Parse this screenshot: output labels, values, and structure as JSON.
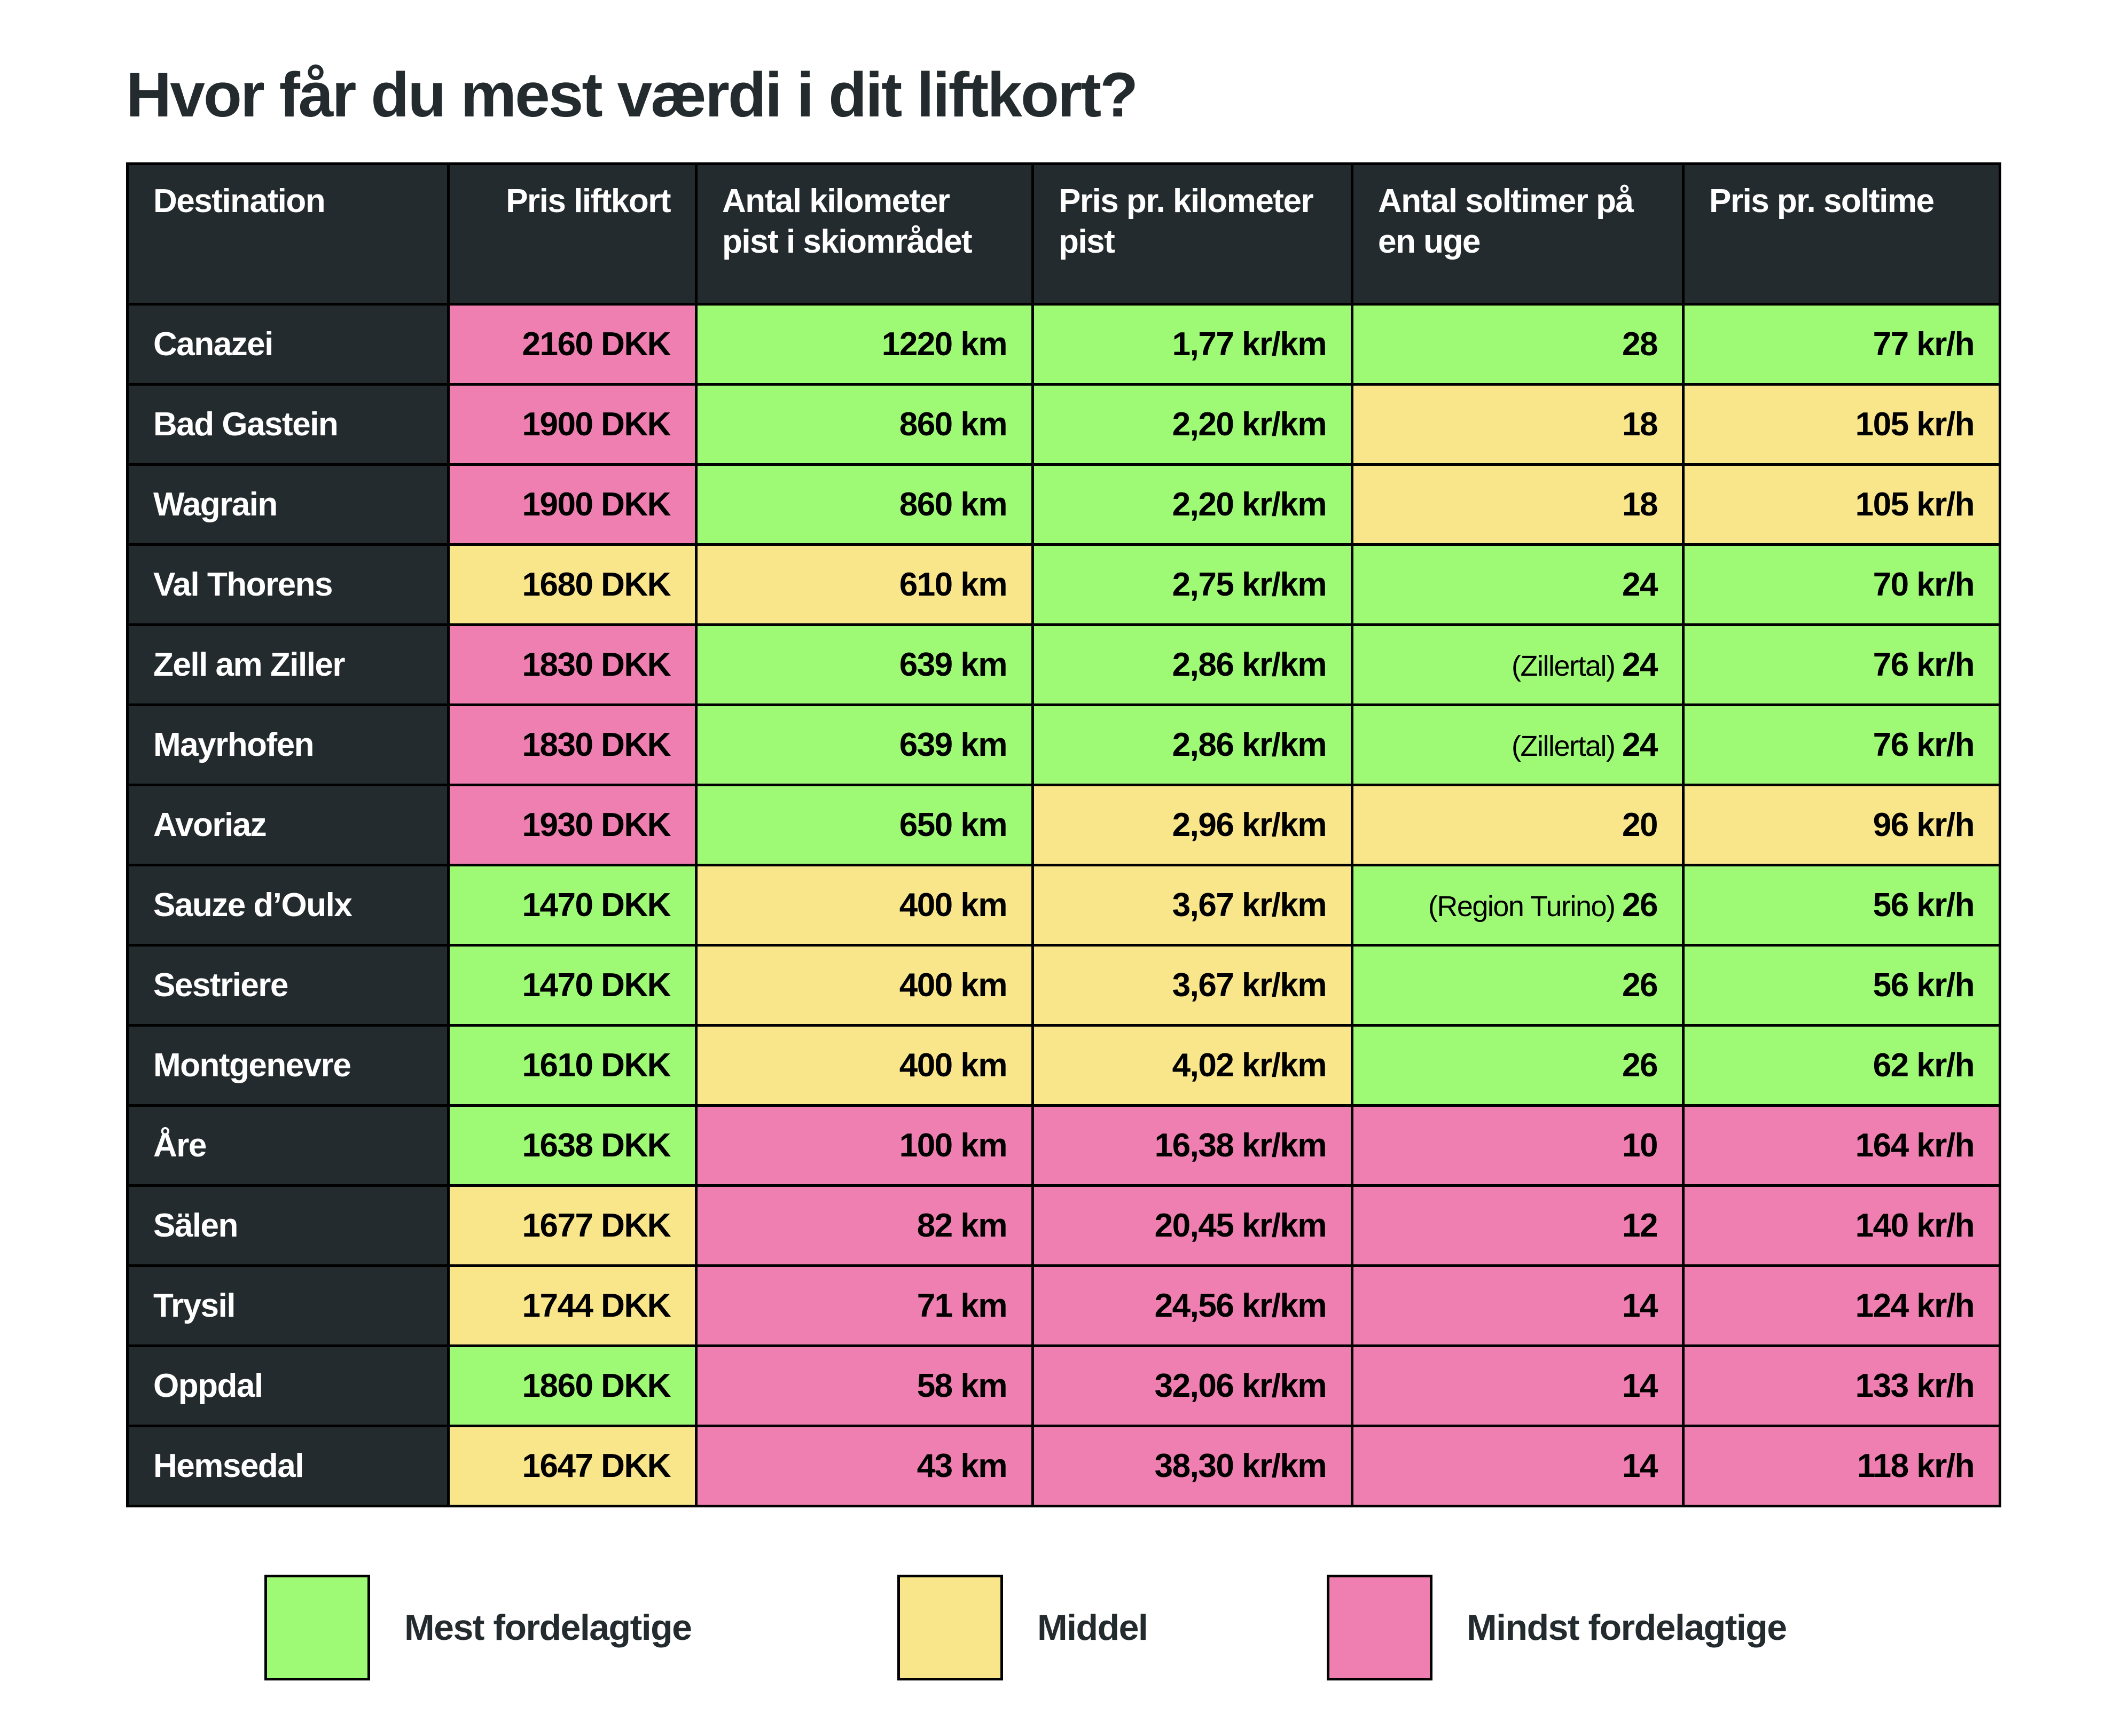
{
  "title": "Hvor får du mest værdi i dit liftkort?",
  "colors": {
    "best": "#9ef975",
    "middle": "#f9e68a",
    "worst": "#ee7fb0",
    "header": "#242b2e"
  },
  "columns": [
    "Destination",
    "Pris liftkort",
    "Antal kilometer pist i skiområdet",
    "Pris pr. kilometer pist",
    "Antal soltimer på en uge",
    "Pris pr. soltime"
  ],
  "rows": [
    {
      "destination": "Canazei",
      "price": "2160 DKK",
      "price_c": "p",
      "km": "1220 km",
      "km_c": "g",
      "per_km": "1,77 kr/km",
      "per_km_c": "g",
      "sun_note": "",
      "sun": "28",
      "sun_c": "g",
      "per_sun": "77 kr/h",
      "per_sun_c": "g"
    },
    {
      "destination": "Bad Gastein",
      "price": "1900 DKK",
      "price_c": "p",
      "km": "860 km",
      "km_c": "g",
      "per_km": "2,20 kr/km",
      "per_km_c": "g",
      "sun_note": "",
      "sun": "18",
      "sun_c": "y",
      "per_sun": "105 kr/h",
      "per_sun_c": "y"
    },
    {
      "destination": "Wagrain",
      "price": "1900 DKK",
      "price_c": "p",
      "km": "860 km",
      "km_c": "g",
      "per_km": "2,20 kr/km",
      "per_km_c": "g",
      "sun_note": "",
      "sun": "18",
      "sun_c": "y",
      "per_sun": "105 kr/h",
      "per_sun_c": "y"
    },
    {
      "destination": "Val Thorens",
      "price": "1680 DKK",
      "price_c": "y",
      "km": "610 km",
      "km_c": "y",
      "per_km": "2,75 kr/km",
      "per_km_c": "g",
      "sun_note": "",
      "sun": "24",
      "sun_c": "g",
      "per_sun": "70 kr/h",
      "per_sun_c": "g"
    },
    {
      "destination": "Zell am Ziller",
      "price": "1830 DKK",
      "price_c": "p",
      "km": "639 km",
      "km_c": "g",
      "per_km": "2,86 kr/km",
      "per_km_c": "g",
      "sun_note": "(Zillertal) ",
      "sun": "24",
      "sun_c": "g",
      "per_sun": "76 kr/h",
      "per_sun_c": "g"
    },
    {
      "destination": "Mayrhofen",
      "price": "1830 DKK",
      "price_c": "p",
      "km": "639 km",
      "km_c": "g",
      "per_km": "2,86 kr/km",
      "per_km_c": "g",
      "sun_note": "(Zillertal) ",
      "sun": "24",
      "sun_c": "g",
      "per_sun": "76 kr/h",
      "per_sun_c": "g"
    },
    {
      "destination": "Avoriaz",
      "price": "1930 DKK",
      "price_c": "p",
      "km": "650 km",
      "km_c": "g",
      "per_km": "2,96 kr/km",
      "per_km_c": "y",
      "sun_note": "",
      "sun": "20",
      "sun_c": "y",
      "per_sun": "96 kr/h",
      "per_sun_c": "y"
    },
    {
      "destination": "Sauze d’Oulx",
      "price": "1470 DKK",
      "price_c": "g",
      "km": "400 km",
      "km_c": "y",
      "per_km": "3,67 kr/km",
      "per_km_c": "y",
      "sun_note": "(Region Turino) ",
      "sun": "26",
      "sun_c": "g",
      "per_sun": "56 kr/h",
      "per_sun_c": "g"
    },
    {
      "destination": "Sestriere",
      "price": "1470 DKK",
      "price_c": "g",
      "km": "400 km",
      "km_c": "y",
      "per_km": "3,67 kr/km",
      "per_km_c": "y",
      "sun_note": "",
      "sun": "26",
      "sun_c": "g",
      "per_sun": "56 kr/h",
      "per_sun_c": "g"
    },
    {
      "destination": "Montgenevre",
      "price": "1610 DKK",
      "price_c": "g",
      "km": "400 km",
      "km_c": "y",
      "per_km": "4,02 kr/km",
      "per_km_c": "y",
      "sun_note": "",
      "sun": "26",
      "sun_c": "g",
      "per_sun": "62 kr/h",
      "per_sun_c": "g"
    },
    {
      "destination": "Åre",
      "price": "1638 DKK",
      "price_c": "g",
      "km": "100 km",
      "km_c": "p",
      "per_km": "16,38 kr/km",
      "per_km_c": "p",
      "sun_note": "",
      "sun": "10",
      "sun_c": "p",
      "per_sun": "164 kr/h",
      "per_sun_c": "p"
    },
    {
      "destination": "Sälen",
      "price": "1677 DKK",
      "price_c": "y",
      "km": "82 km",
      "km_c": "p",
      "per_km": "20,45 kr/km",
      "per_km_c": "p",
      "sun_note": "",
      "sun": "12",
      "sun_c": "p",
      "per_sun": "140 kr/h",
      "per_sun_c": "p"
    },
    {
      "destination": "Trysil",
      "price": "1744 DKK",
      "price_c": "y",
      "km": "71 km",
      "km_c": "p",
      "per_km": "24,56 kr/km",
      "per_km_c": "p",
      "sun_note": "",
      "sun": "14",
      "sun_c": "p",
      "per_sun": "124 kr/h",
      "per_sun_c": "p"
    },
    {
      "destination": "Oppdal",
      "price": "1860 DKK",
      "price_c": "g",
      "km": "58 km",
      "km_c": "p",
      "per_km": "32,06 kr/km",
      "per_km_c": "p",
      "sun_note": "",
      "sun": "14",
      "sun_c": "p",
      "per_sun": "133 kr/h",
      "per_sun_c": "p"
    },
    {
      "destination": "Hemsedal",
      "price": "1647 DKK",
      "price_c": "y",
      "km": "43 km",
      "km_c": "p",
      "per_km": "38,30 kr/km",
      "per_km_c": "p",
      "sun_note": "",
      "sun": "14",
      "sun_c": "p",
      "per_sun": "118 kr/h",
      "per_sun_c": "p"
    }
  ],
  "legend": [
    "Mest fordelagtige",
    "Middel",
    "Mindst fordelagtige"
  ]
}
